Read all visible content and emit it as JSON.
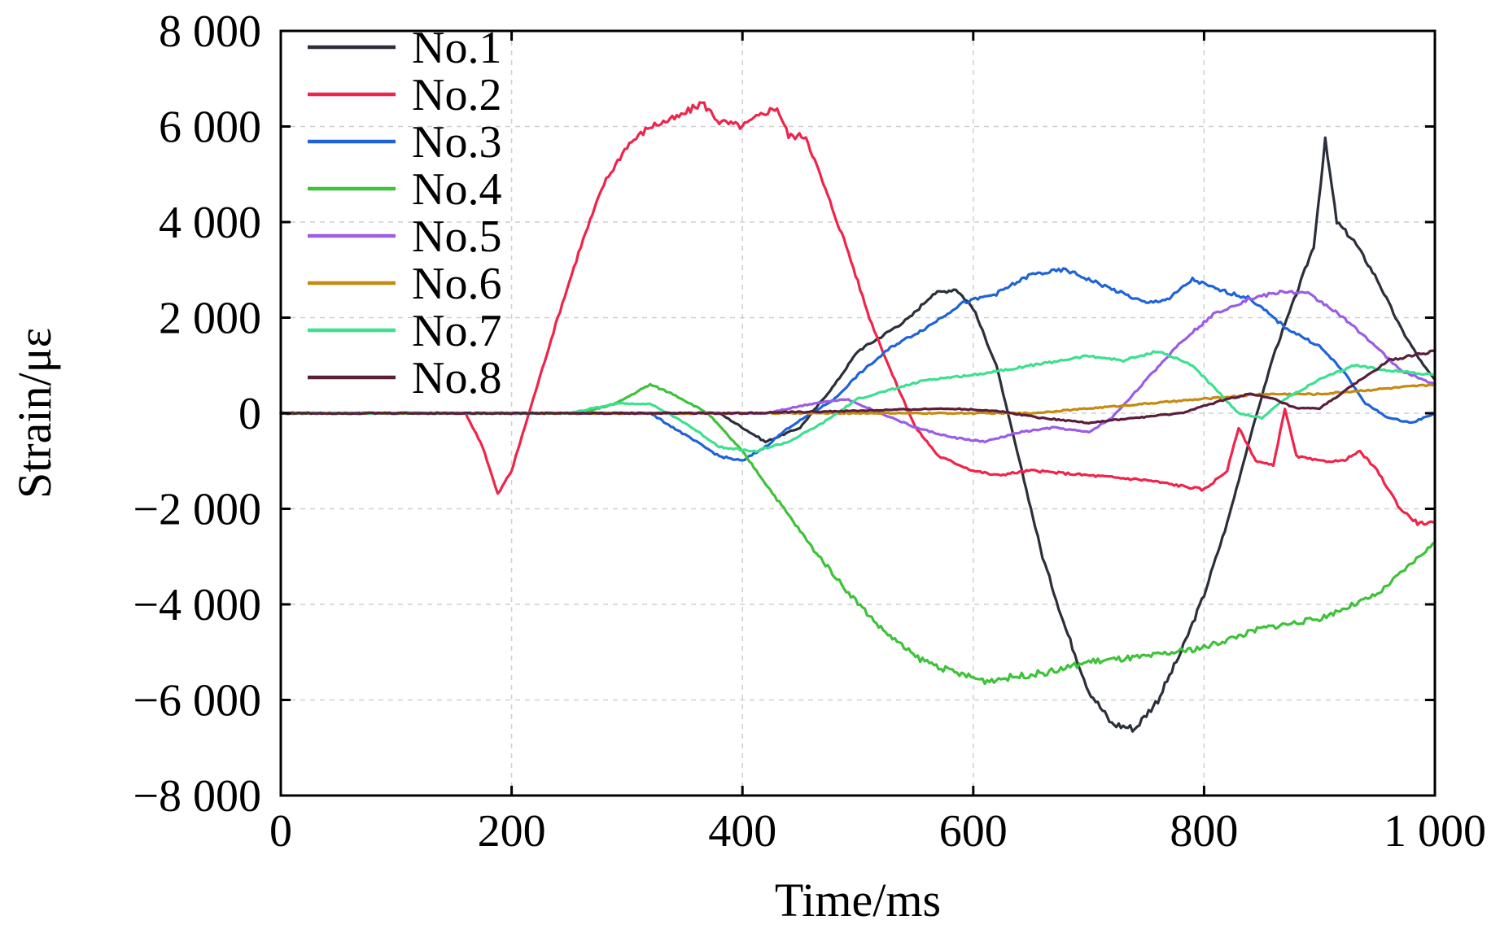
{
  "chart_data": {
    "type": "line",
    "title": "",
    "xlabel": "Time/ms",
    "ylabel": "Strain/με",
    "xlim": [
      0,
      1000
    ],
    "ylim": [
      -8000,
      8000
    ],
    "x_ticks": [
      0,
      200,
      400,
      600,
      800,
      1000
    ],
    "x_tick_labels": [
      "0",
      "200",
      "400",
      "600",
      "800",
      "1 000"
    ],
    "y_ticks": [
      8000,
      6000,
      4000,
      2000,
      0,
      -2000,
      -4000,
      -6000,
      -8000
    ],
    "y_tick_labels": [
      "8 000",
      "6 000",
      "4 000",
      "2 000",
      "0",
      "−2 000",
      "−4 000",
      "−6 000",
      "−8 000"
    ],
    "grid": true,
    "legend_position": "top-left",
    "series": [
      {
        "name": "No.1",
        "color": "#2b2f3a",
        "points": [
          [
            0,
            0
          ],
          [
            300,
            0
          ],
          [
            380,
            0
          ],
          [
            420,
            -600
          ],
          [
            450,
            -300
          ],
          [
            480,
            600
          ],
          [
            500,
            1300
          ],
          [
            520,
            1600
          ],
          [
            545,
            2000
          ],
          [
            565,
            2500
          ],
          [
            585,
            2600
          ],
          [
            600,
            2200
          ],
          [
            620,
            1000
          ],
          [
            640,
            -1000
          ],
          [
            660,
            -3000
          ],
          [
            680,
            -4500
          ],
          [
            700,
            -5800
          ],
          [
            720,
            -6500
          ],
          [
            740,
            -6600
          ],
          [
            760,
            -6000
          ],
          [
            780,
            -5000
          ],
          [
            800,
            -3800
          ],
          [
            820,
            -2300
          ],
          [
            840,
            -500
          ],
          [
            860,
            1200
          ],
          [
            880,
            2500
          ],
          [
            895,
            3500
          ],
          [
            905,
            5700
          ],
          [
            915,
            4000
          ],
          [
            930,
            3600
          ],
          [
            950,
            2800
          ],
          [
            970,
            1800
          ],
          [
            990,
            1000
          ],
          [
            1000,
            700
          ]
        ]
      },
      {
        "name": "No.2",
        "color": "#f0244a",
        "points": [
          [
            0,
            0
          ],
          [
            160,
            0
          ],
          [
            175,
            -700
          ],
          [
            188,
            -1700
          ],
          [
            200,
            -1200
          ],
          [
            215,
            0
          ],
          [
            240,
            2000
          ],
          [
            260,
            3500
          ],
          [
            280,
            4800
          ],
          [
            300,
            5600
          ],
          [
            320,
            6000
          ],
          [
            345,
            6200
          ],
          [
            365,
            6500
          ],
          [
            380,
            6100
          ],
          [
            400,
            6000
          ],
          [
            420,
            6300
          ],
          [
            430,
            6400
          ],
          [
            440,
            5800
          ],
          [
            455,
            5800
          ],
          [
            470,
            4800
          ],
          [
            490,
            3500
          ],
          [
            510,
            2000
          ],
          [
            530,
            800
          ],
          [
            550,
            -300
          ],
          [
            570,
            -900
          ],
          [
            600,
            -1200
          ],
          [
            620,
            -1300
          ],
          [
            650,
            -1200
          ],
          [
            700,
            -1300
          ],
          [
            750,
            -1400
          ],
          [
            800,
            -1600
          ],
          [
            820,
            -1200
          ],
          [
            830,
            -300
          ],
          [
            845,
            -1000
          ],
          [
            860,
            -1100
          ],
          [
            870,
            100
          ],
          [
            880,
            -900
          ],
          [
            900,
            -1000
          ],
          [
            920,
            -1000
          ],
          [
            935,
            -800
          ],
          [
            950,
            -1200
          ],
          [
            970,
            -2000
          ],
          [
            985,
            -2300
          ],
          [
            1000,
            -2300
          ]
        ]
      },
      {
        "name": "No.3",
        "color": "#1f64d6",
        "points": [
          [
            0,
            0
          ],
          [
            320,
            0
          ],
          [
            340,
            -300
          ],
          [
            360,
            -600
          ],
          [
            380,
            -900
          ],
          [
            400,
            -1000
          ],
          [
            420,
            -700
          ],
          [
            440,
            -300
          ],
          [
            460,
            0
          ],
          [
            480,
            300
          ],
          [
            500,
            800
          ],
          [
            530,
            1400
          ],
          [
            560,
            1800
          ],
          [
            590,
            2300
          ],
          [
            620,
            2500
          ],
          [
            650,
            2900
          ],
          [
            680,
            3000
          ],
          [
            700,
            2800
          ],
          [
            730,
            2500
          ],
          [
            750,
            2300
          ],
          [
            770,
            2400
          ],
          [
            790,
            2800
          ],
          [
            810,
            2600
          ],
          [
            840,
            2400
          ],
          [
            870,
            1800
          ],
          [
            900,
            1400
          ],
          [
            920,
            900
          ],
          [
            940,
            200
          ],
          [
            960,
            -100
          ],
          [
            980,
            -200
          ],
          [
            1000,
            0
          ]
        ]
      },
      {
        "name": "No.4",
        "color": "#3ec23a",
        "points": [
          [
            0,
            0
          ],
          [
            260,
            0
          ],
          [
            290,
            200
          ],
          [
            320,
            600
          ],
          [
            340,
            400
          ],
          [
            370,
            0
          ],
          [
            400,
            -800
          ],
          [
            430,
            -1800
          ],
          [
            460,
            -2800
          ],
          [
            490,
            -3700
          ],
          [
            520,
            -4500
          ],
          [
            550,
            -5100
          ],
          [
            580,
            -5400
          ],
          [
            610,
            -5600
          ],
          [
            640,
            -5500
          ],
          [
            670,
            -5400
          ],
          [
            700,
            -5200
          ],
          [
            750,
            -5100
          ],
          [
            800,
            -4900
          ],
          [
            850,
            -4500
          ],
          [
            900,
            -4300
          ],
          [
            950,
            -3800
          ],
          [
            1000,
            -2700
          ]
        ]
      },
      {
        "name": "No.5",
        "color": "#9b5de5",
        "points": [
          [
            0,
            0
          ],
          [
            420,
            0
          ],
          [
            460,
            200
          ],
          [
            490,
            300
          ],
          [
            520,
            0
          ],
          [
            550,
            -300
          ],
          [
            580,
            -500
          ],
          [
            610,
            -600
          ],
          [
            640,
            -400
          ],
          [
            670,
            -300
          ],
          [
            700,
            -400
          ],
          [
            720,
            -100
          ],
          [
            750,
            700
          ],
          [
            780,
            1500
          ],
          [
            810,
            2100
          ],
          [
            840,
            2400
          ],
          [
            870,
            2550
          ],
          [
            890,
            2500
          ],
          [
            910,
            2200
          ],
          [
            940,
            1600
          ],
          [
            970,
            900
          ],
          [
            1000,
            600
          ]
        ]
      },
      {
        "name": "No.6",
        "color": "#c48a12",
        "points": [
          [
            0,
            0
          ],
          [
            500,
            0
          ],
          [
            600,
            0
          ],
          [
            650,
            0
          ],
          [
            700,
            100
          ],
          [
            750,
            200
          ],
          [
            800,
            300
          ],
          [
            850,
            400
          ],
          [
            900,
            400
          ],
          [
            950,
            500
          ],
          [
            1000,
            600
          ]
        ]
      },
      {
        "name": "No.7",
        "color": "#3de08f",
        "points": [
          [
            0,
            0
          ],
          [
            250,
            0
          ],
          [
            290,
            200
          ],
          [
            320,
            200
          ],
          [
            350,
            -200
          ],
          [
            380,
            -700
          ],
          [
            410,
            -800
          ],
          [
            440,
            -600
          ],
          [
            470,
            -200
          ],
          [
            500,
            300
          ],
          [
            530,
            500
          ],
          [
            560,
            700
          ],
          [
            600,
            800
          ],
          [
            650,
            1000
          ],
          [
            700,
            1200
          ],
          [
            730,
            1100
          ],
          [
            760,
            1300
          ],
          [
            790,
            1000
          ],
          [
            810,
            500
          ],
          [
            830,
            0
          ],
          [
            850,
            -100
          ],
          [
            870,
            300
          ],
          [
            900,
            700
          ],
          [
            930,
            1000
          ],
          [
            960,
            900
          ],
          [
            1000,
            800
          ]
        ]
      },
      {
        "name": "No.8",
        "color": "#5a1e3a",
        "points": [
          [
            0,
            0
          ],
          [
            400,
            0
          ],
          [
            500,
            50
          ],
          [
            580,
            100
          ],
          [
            620,
            50
          ],
          [
            660,
            -100
          ],
          [
            700,
            -200
          ],
          [
            740,
            -100
          ],
          [
            780,
            0
          ],
          [
            820,
            300
          ],
          [
            840,
            400
          ],
          [
            860,
            300
          ],
          [
            880,
            100
          ],
          [
            900,
            100
          ],
          [
            930,
            600
          ],
          [
            960,
            1100
          ],
          [
            1000,
            1300
          ]
        ]
      }
    ]
  }
}
